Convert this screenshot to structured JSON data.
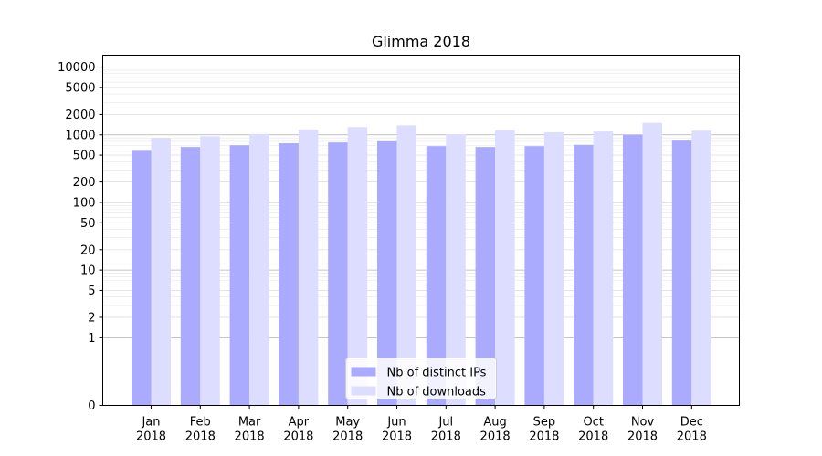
{
  "chart_data": {
    "type": "bar",
    "title": "Glimma 2018",
    "xlabel": "",
    "ylabel": "",
    "yscale": "symlog",
    "ylim": [
      0,
      15000
    ],
    "yticks": [
      0,
      1,
      2,
      5,
      10,
      20,
      50,
      100,
      200,
      500,
      1000,
      2000,
      5000,
      10000
    ],
    "grid": true,
    "legend_position": "bottom-center",
    "categories": [
      "Jan\n2018",
      "Feb\n2018",
      "Mar\n2018",
      "Apr\n2018",
      "May\n2018",
      "Jun\n2018",
      "Jul\n2018",
      "Aug\n2018",
      "Sep\n2018",
      "Oct\n2018",
      "Nov\n2018",
      "Dec\n2018"
    ],
    "series": [
      {
        "name": "Nb of distinct IPs",
        "color": "#aaaaff",
        "values": [
          580,
          660,
          700,
          750,
          770,
          800,
          680,
          660,
          680,
          710,
          1000,
          820
        ]
      },
      {
        "name": "Nb of downloads",
        "color": "#ddddff",
        "values": [
          900,
          950,
          1030,
          1200,
          1300,
          1380,
          1020,
          1170,
          1090,
          1120,
          1500,
          1150
        ]
      }
    ]
  }
}
